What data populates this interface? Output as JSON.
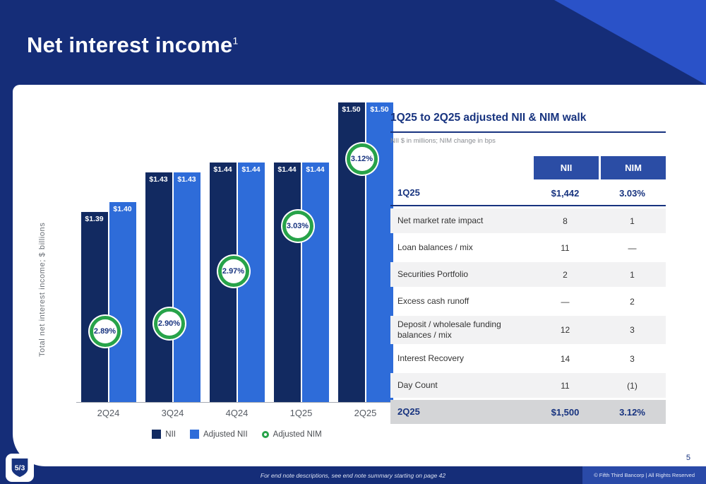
{
  "slide": {
    "title": "Net interest income",
    "title_superscript": "1",
    "page_number": "5",
    "footer_note": "For end note descriptions, see end note summary starting on page 42",
    "footer_copyright": "© Fifth Third Bancorp | All Rights Reserved",
    "logo_text": "5/3"
  },
  "colors": {
    "navy": "#152d78",
    "header_accent": "#2a52c8",
    "bar_nii": "#122a61",
    "bar_adjusted_nii": "#2e6cd9",
    "nim_green": "#27a349",
    "table_header_blue": "#2b4da5",
    "navy_text": "#17337f",
    "row_alt": "#f2f2f3",
    "row_total": "#d4d5d7"
  },
  "chart_data": {
    "type": "bar",
    "title": "",
    "xlabel": "",
    "ylabel": "Total net interest income; $ billions",
    "categories": [
      "2Q24",
      "3Q24",
      "4Q24",
      "1Q25",
      "2Q25"
    ],
    "series": [
      {
        "name": "NII",
        "values": [
          1.39,
          1.43,
          1.44,
          1.44,
          1.5
        ],
        "labels": [
          "$1.39",
          "$1.43",
          "$1.44",
          "$1.44",
          "$1.50"
        ]
      },
      {
        "name": "Adjusted NII",
        "values": [
          1.4,
          1.43,
          1.44,
          1.44,
          1.5
        ],
        "labels": [
          "$1.40",
          "$1.43",
          "$1.44",
          "$1.44",
          "$1.50"
        ]
      }
    ],
    "nim_series": {
      "name": "Adjusted NIM",
      "values": [
        2.89,
        2.9,
        2.97,
        3.03,
        3.12
      ],
      "labels": [
        "2.89%",
        "2.90%",
        "2.97%",
        "3.03%",
        "3.12%"
      ]
    },
    "value_axis_min": 1.2,
    "value_axis_max": 1.5,
    "nim_axis_min": 2.8,
    "nim_axis_max": 3.2,
    "grid": false,
    "legend_position": "bottom",
    "legend": [
      "NII",
      "Adjusted NII",
      "Adjusted NIM"
    ]
  },
  "walk_table": {
    "title": "1Q25 to 2Q25 adjusted NII & NIM walk",
    "subtitle": "NII $ in millions; NIM change in bps",
    "columns": [
      "NII",
      "NIM"
    ],
    "start_row": {
      "label": "1Q25",
      "nii": "$1,442",
      "nim": "3.03%"
    },
    "rows": [
      {
        "label": "Net market rate impact",
        "nii": "8",
        "nim": "1"
      },
      {
        "label": "Loan balances / mix",
        "nii": "11",
        "nim": "—"
      },
      {
        "label": "Securities Portfolio",
        "nii": "2",
        "nim": "1"
      },
      {
        "label": "Excess cash runoff",
        "nii": "—",
        "nim": "2"
      },
      {
        "label": "Deposit / wholesale funding balances / mix",
        "nii": "12",
        "nim": "3"
      },
      {
        "label": "Interest Recovery",
        "nii": "14",
        "nim": "3"
      },
      {
        "label": "Day Count",
        "nii": "11",
        "nim": "(1)"
      }
    ],
    "total_row": {
      "label": "2Q25",
      "nii": "$1,500",
      "nim": "3.12%"
    }
  }
}
